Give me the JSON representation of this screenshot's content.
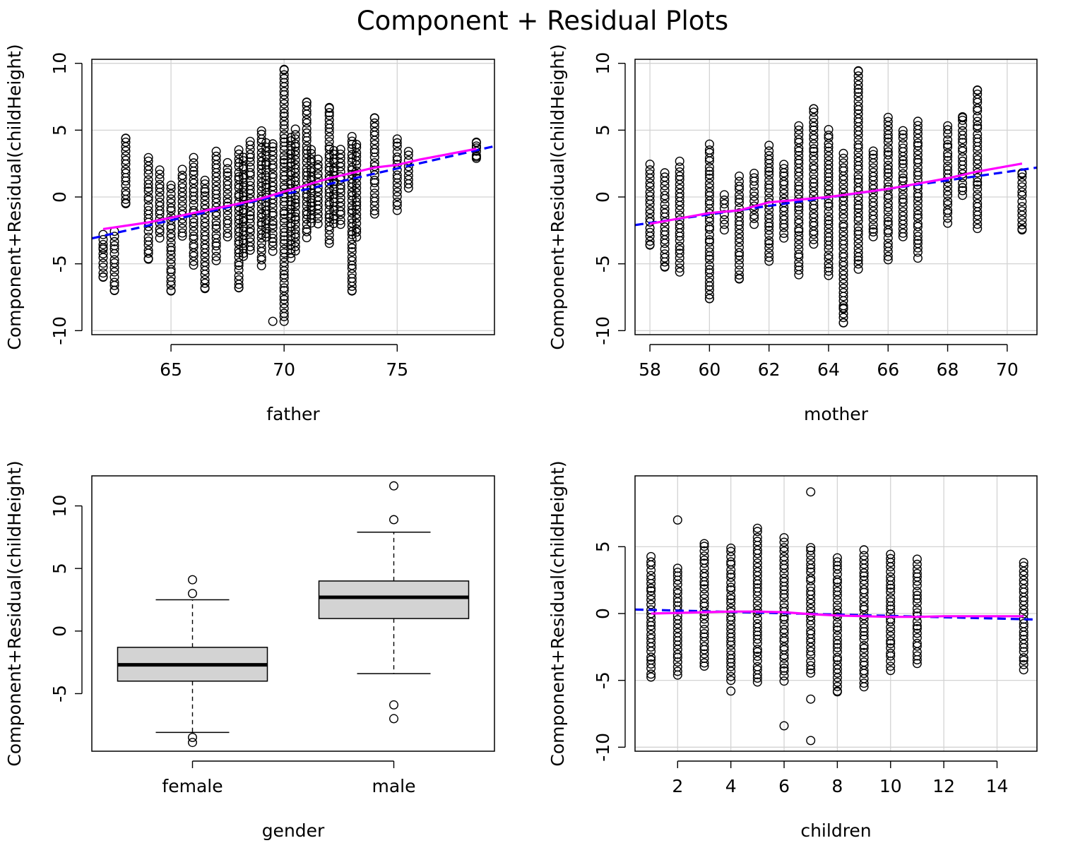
{
  "title": "Component + Residual Plots",
  "colors": {
    "linear_fit": "#0000ff",
    "smooth": "#ff00ff",
    "box_fill": "#d3d3d3",
    "grid": "#d3d3d3"
  },
  "chart_data": [
    {
      "type": "scatter",
      "xlabel": "father",
      "ylabel": "Component+Residual(childHeight)",
      "xlim": [
        61.5,
        79.3
      ],
      "ylim": [
        -10.3,
        10.3
      ],
      "xticks": [
        65,
        70,
        75
      ],
      "yticks": [
        -10,
        -5,
        0,
        5,
        10
      ],
      "grid": true,
      "x_values": [
        62,
        62.5,
        63,
        64,
        64.5,
        65,
        65.5,
        66,
        66.5,
        67,
        67.5,
        68,
        68.2,
        68.5,
        69,
        69.2,
        69.5,
        70,
        70.3,
        70.5,
        71,
        71.2,
        71.5,
        72,
        72.2,
        72.5,
        73,
        73.2,
        74,
        75,
        75.5,
        78.5
      ],
      "column_ranges": [
        [
          -6.0,
          -2.8
        ],
        [
          -7.0,
          -2.6
        ],
        [
          -0.5,
          4.4
        ],
        [
          -4.6,
          3.0
        ],
        [
          -3.0,
          2.0
        ],
        [
          -7.0,
          0.9
        ],
        [
          -3.0,
          2.0
        ],
        [
          -5.1,
          2.9
        ],
        [
          -6.8,
          1.3
        ],
        [
          -4.7,
          3.4
        ],
        [
          -3.0,
          2.5
        ],
        [
          -6.8,
          3.5
        ],
        [
          -4.5,
          3.0
        ],
        [
          -4.0,
          4.2
        ],
        [
          -5.1,
          5.0
        ],
        [
          -3.0,
          4.0
        ],
        [
          -4.0,
          4.0
        ],
        [
          -9.3,
          9.5
        ],
        [
          -4.5,
          4.5
        ],
        [
          -4.0,
          5.0
        ],
        [
          -3.0,
          7.1
        ],
        [
          -2.0,
          3.5
        ],
        [
          -2.0,
          2.8
        ],
        [
          -3.5,
          6.7
        ],
        [
          -2.0,
          3.5
        ],
        [
          -2.0,
          3.5
        ],
        [
          -7.0,
          4.5
        ],
        [
          -3.0,
          4.0
        ],
        [
          -1.3,
          5.9
        ],
        [
          -1.0,
          4.4
        ],
        [
          0.6,
          3.4
        ],
        [
          2.9,
          4.1
        ]
      ],
      "points": [
        [
          62,
          -6.0
        ],
        [
          62,
          -3.8
        ],
        [
          62.5,
          -7.0
        ],
        [
          63,
          4.4
        ],
        [
          63,
          -0.5
        ],
        [
          64,
          -4.6
        ],
        [
          65,
          -7.0
        ],
        [
          70,
          9.5
        ],
        [
          69.5,
          -9.3
        ],
        [
          71,
          7.1
        ],
        [
          72,
          6.7
        ],
        [
          73,
          -7.0
        ],
        [
          66.5,
          -6.8
        ],
        [
          68,
          -6.8
        ],
        [
          74,
          5.9
        ],
        [
          78.5,
          4.1
        ],
        [
          78.5,
          3.0
        ]
      ],
      "linear_fit": [
        [
          61.5,
          -3.1
        ],
        [
          79.3,
          3.8
        ]
      ],
      "smooth": [
        [
          62,
          -2.4
        ],
        [
          64,
          -1.9
        ],
        [
          66,
          -1.2
        ],
        [
          68,
          -0.5
        ],
        [
          69,
          -0.1
        ],
        [
          70,
          0.4
        ],
        [
          71,
          0.9
        ],
        [
          72,
          1.4
        ],
        [
          73,
          1.8
        ],
        [
          74,
          2.2
        ],
        [
          75,
          2.4
        ],
        [
          76,
          2.8
        ],
        [
          78.5,
          3.6
        ]
      ]
    },
    {
      "type": "scatter",
      "xlabel": "mother",
      "ylabel": "Component+Residual(childHeight)",
      "xlim": [
        57.5,
        71
      ],
      "ylim": [
        -10.3,
        10.3
      ],
      "xticks": [
        58,
        60,
        62,
        64,
        66,
        68,
        70
      ],
      "yticks": [
        -10,
        -5,
        0,
        5,
        10
      ],
      "grid": true,
      "x_values": [
        58,
        58.5,
        59,
        60,
        60.5,
        61,
        61.5,
        62,
        62.5,
        63,
        63.5,
        64,
        64.5,
        65,
        65.5,
        66,
        66.5,
        67,
        68,
        68.5,
        69,
        70.5
      ],
      "column_ranges": [
        [
          -3.6,
          2.4
        ],
        [
          -5.2,
          1.8
        ],
        [
          -5.6,
          2.6
        ],
        [
          -7.6,
          3.9
        ],
        [
          -2.4,
          0.2
        ],
        [
          -6.1,
          1.5
        ],
        [
          -2.0,
          1.8
        ],
        [
          -4.8,
          3.8
        ],
        [
          -3.0,
          2.5
        ],
        [
          -5.8,
          5.3
        ],
        [
          -3.5,
          6.6
        ],
        [
          -5.9,
          5.0
        ],
        [
          -9.4,
          3.2
        ],
        [
          -5.4,
          9.4
        ],
        [
          -3.0,
          3.5
        ],
        [
          -4.7,
          6.0
        ],
        [
          -3.0,
          5.0
        ],
        [
          -4.5,
          5.7
        ],
        [
          -1.9,
          5.3
        ],
        [
          0.1,
          6.0
        ],
        [
          -2.4,
          8.0
        ],
        [
          -2.4,
          1.8
        ]
      ],
      "points": [
        [
          64.5,
          -9.4
        ],
        [
          64.5,
          -8.3
        ],
        [
          60,
          -7.6
        ],
        [
          61,
          -6.1
        ],
        [
          65,
          9.4
        ],
        [
          69,
          8.0
        ],
        [
          63.5,
          6.6
        ],
        [
          68.5,
          6.0
        ],
        [
          70.5,
          1.8
        ],
        [
          70.5,
          -2.4
        ],
        [
          58,
          -3.6
        ],
        [
          58.5,
          -5.2
        ]
      ],
      "linear_fit": [
        [
          57.5,
          -2.1
        ],
        [
          71,
          2.2
        ]
      ],
      "smooth": [
        [
          58,
          -2.0
        ],
        [
          60,
          -1.2
        ],
        [
          61,
          -1.0
        ],
        [
          62,
          -0.4
        ],
        [
          63,
          -0.2
        ],
        [
          64,
          0.0
        ],
        [
          65,
          0.3
        ],
        [
          66,
          0.6
        ],
        [
          67,
          1.0
        ],
        [
          68,
          1.4
        ],
        [
          69,
          1.9
        ],
        [
          70.5,
          2.5
        ]
      ]
    },
    {
      "type": "box",
      "xlabel": "gender",
      "ylabel": "Component+Residual(childHeight)",
      "ylim": [
        -9.6,
        12.4
      ],
      "yticks": [
        -5,
        0,
        5,
        10
      ],
      "categories": [
        "female",
        "male"
      ],
      "boxes": [
        {
          "name": "female",
          "whisker_low": -8.1,
          "q1": -4.0,
          "median": -2.7,
          "q3": -1.3,
          "whisker_high": 2.5,
          "outliers": [
            -8.9,
            -8.5,
            3.0,
            4.1
          ]
        },
        {
          "name": "male",
          "whisker_low": -3.4,
          "q1": 1.0,
          "median": 2.7,
          "q3": 4.0,
          "whisker_high": 7.9,
          "outliers": [
            -7.0,
            -5.9,
            8.9,
            11.6
          ]
        }
      ]
    },
    {
      "type": "scatter",
      "xlabel": "children",
      "ylabel": "Component+Residual(childHeight)",
      "xlim": [
        0.4,
        15.5
      ],
      "ylim": [
        -10.3,
        10.3
      ],
      "xticks": [
        2,
        4,
        6,
        8,
        10,
        12,
        14
      ],
      "yticks": [
        -10,
        -5,
        0,
        5
      ],
      "grid": true,
      "x_values": [
        1,
        2,
        3,
        4,
        5,
        6,
        7,
        8,
        9,
        10,
        11,
        15
      ],
      "column_ranges": [
        [
          -4.8,
          4.2
        ],
        [
          -4.6,
          3.4
        ],
        [
          -4.0,
          5.3
        ],
        [
          -5.0,
          4.9
        ],
        [
          -5.2,
          6.4
        ],
        [
          -5.0,
          5.6
        ],
        [
          -4.5,
          5.0
        ],
        [
          -5.8,
          4.2
        ],
        [
          -5.5,
          4.7
        ],
        [
          -4.2,
          4.4
        ],
        [
          -3.8,
          4.0
        ],
        [
          -4.2,
          3.8
        ]
      ],
      "points": [
        [
          2,
          7.0
        ],
        [
          7,
          9.1
        ],
        [
          6,
          -8.4
        ],
        [
          7,
          -9.5
        ],
        [
          7,
          -6.4
        ],
        [
          4,
          -5.8
        ],
        [
          8,
          -5.8
        ]
      ],
      "linear_fit": [
        [
          0.4,
          0.3
        ],
        [
          15.5,
          -0.45
        ]
      ],
      "smooth": [
        [
          1,
          0.0
        ],
        [
          2,
          0.05
        ],
        [
          3,
          0.1
        ],
        [
          4,
          0.15
        ],
        [
          5,
          0.15
        ],
        [
          6,
          0.1
        ],
        [
          7,
          -0.05
        ],
        [
          8,
          -0.15
        ],
        [
          9,
          -0.2
        ],
        [
          10,
          -0.25
        ],
        [
          11,
          -0.25
        ],
        [
          12,
          -0.2
        ],
        [
          15,
          -0.2
        ]
      ]
    }
  ]
}
